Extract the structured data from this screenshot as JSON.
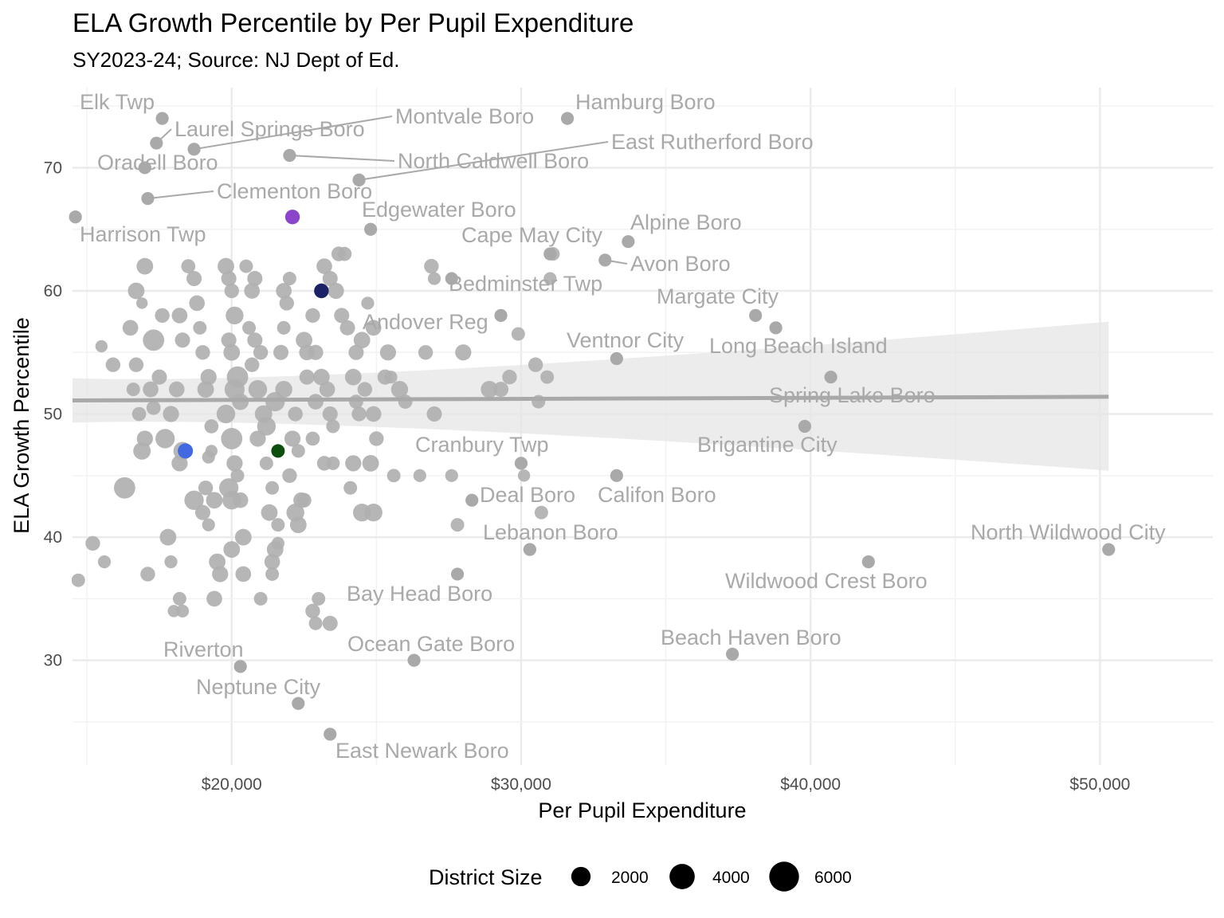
{
  "chart_data": {
    "type": "scatter",
    "title": "ELA Growth Percentile by Per Pupil Expenditure",
    "subtitle": "SY2023-24; Source: NJ Dept of Ed.",
    "xlabel": "Per Pupil Expenditure",
    "ylabel": "ELA Growth Percentile",
    "xlim": [
      14500,
      53900
    ],
    "ylim": [
      21.5,
      76.5
    ],
    "x_ticks": [
      {
        "value": 20000,
        "label": "$20,000"
      },
      {
        "value": 30000,
        "label": "$30,000"
      },
      {
        "value": 40000,
        "label": "$40,000"
      },
      {
        "value": 50000,
        "label": "$50,000"
      }
    ],
    "y_ticks": [
      {
        "value": 30,
        "label": "30"
      },
      {
        "value": 40,
        "label": "40"
      },
      {
        "value": 50,
        "label": "50"
      },
      {
        "value": 60,
        "label": "60"
      },
      {
        "value": 70,
        "label": "70"
      }
    ],
    "grid": true,
    "trend": {
      "type": "linear",
      "x_start": 14500,
      "y_start": 51.1,
      "x_end": 50300,
      "y_end": 51.4,
      "band_start": [
        49.3,
        52.9
      ],
      "band_mid": [
        50.3,
        51.9
      ],
      "band_x_mid": 24000,
      "band_end": [
        45.4,
        57.5
      ],
      "color": "#a9a9a9"
    },
    "legend": {
      "title": "District Size",
      "position": "bottom",
      "entries": [
        {
          "label": "2000",
          "size": 2000
        },
        {
          "label": "4000",
          "size": 4000
        },
        {
          "label": "6000",
          "size": 6000
        }
      ]
    },
    "labeled_points": [
      {
        "name": "Elk Twp",
        "x": 17600,
        "y": 74
      },
      {
        "name": "Laurel Springs Boro",
        "x": 17400,
        "y": 72
      },
      {
        "name": "Montvale Boro",
        "x": 18700,
        "y": 71.5
      },
      {
        "name": "Hamburg Boro",
        "x": 31600,
        "y": 74
      },
      {
        "name": "East Rutherford Boro",
        "x": 24400,
        "y": 69
      },
      {
        "name": "Oradell Boro",
        "x": 17000,
        "y": 70
      },
      {
        "name": "North Caldwell Boro",
        "x": 22000,
        "y": 71
      },
      {
        "name": "Clementon Boro",
        "x": 17100,
        "y": 67.5
      },
      {
        "name": "Edgewater Boro",
        "x": 24800,
        "y": 65
      },
      {
        "name": "Harrison Twp",
        "x": 14600,
        "y": 66
      },
      {
        "name": "Alpine Boro",
        "x": 33700,
        "y": 64
      },
      {
        "name": "Cape May City",
        "x": 31000,
        "y": 63
      },
      {
        "name": "Avon Boro",
        "x": 32900,
        "y": 62.5
      },
      {
        "name": "Bedminster Twp",
        "x": 27600,
        "y": 61
      },
      {
        "name": "Margate City",
        "x": 38100,
        "y": 58
      },
      {
        "name": "Andover Reg",
        "x": 29300,
        "y": 58
      },
      {
        "name": "Ventnor City",
        "x": 33300,
        "y": 54.5
      },
      {
        "name": "Long Beach Island",
        "x": 38800,
        "y": 57
      },
      {
        "name": "Spring Lake Boro",
        "x": 40700,
        "y": 53
      },
      {
        "name": "Brigantine City",
        "x": 39800,
        "y": 49
      },
      {
        "name": "Cranbury Twp",
        "x": 30000,
        "y": 46
      },
      {
        "name": "Deal Boro",
        "x": 28300,
        "y": 43
      },
      {
        "name": "Califon Boro",
        "x": 33300,
        "y": 45
      },
      {
        "name": "Lebanon Boro",
        "x": 30300,
        "y": 39
      },
      {
        "name": "North Wildwood City",
        "x": 50300,
        "y": 39
      },
      {
        "name": "Wildwood Crest Boro",
        "x": 42000,
        "y": 38
      },
      {
        "name": "Bay Head Boro",
        "x": 27800,
        "y": 37
      },
      {
        "name": "Ocean Gate Boro",
        "x": 26300,
        "y": 30
      },
      {
        "name": "Beach Haven Boro",
        "x": 37300,
        "y": 30.5
      },
      {
        "name": "Riverton",
        "x": 20300,
        "y": 29.5
      },
      {
        "name": "Neptune City",
        "x": 22300,
        "y": 26.5
      },
      {
        "name": "East Newark Boro",
        "x": 23400,
        "y": 24
      }
    ],
    "highlight_points": [
      {
        "x": 22100,
        "y": 66,
        "size": 900,
        "color": "#8a45c8"
      },
      {
        "x": 23100,
        "y": 60,
        "size": 900,
        "color": "#1b2266"
      },
      {
        "x": 18400,
        "y": 47,
        "size": 1000,
        "color": "#4169e1"
      },
      {
        "x": 21600,
        "y": 47,
        "size": 700,
        "color": "#0d4d0d"
      }
    ],
    "other_points": [
      [
        14700,
        36.5,
        700
      ],
      [
        15200,
        39.5,
        900
      ],
      [
        15600,
        38,
        600
      ],
      [
        15900,
        54,
        900
      ],
      [
        15500,
        55.5,
        500
      ],
      [
        16300,
        44,
        2600
      ],
      [
        16500,
        57,
        1100
      ],
      [
        16700,
        54,
        900
      ],
      [
        16800,
        50,
        800
      ],
      [
        16700,
        60,
        1300
      ],
      [
        16900,
        59,
        400
      ],
      [
        17000,
        62,
        1300
      ],
      [
        16600,
        52,
        700
      ],
      [
        17000,
        48,
        1200
      ],
      [
        16900,
        47,
        1500
      ],
      [
        17100,
        37,
        900
      ],
      [
        17200,
        52,
        1100
      ],
      [
        17300,
        50.5,
        800
      ],
      [
        17500,
        53,
        1000
      ],
      [
        17300,
        56,
        2600
      ],
      [
        17600,
        58,
        900
      ],
      [
        17700,
        48,
        2000
      ],
      [
        17900,
        50,
        1200
      ],
      [
        17800,
        40,
        1300
      ],
      [
        17900,
        38,
        600
      ],
      [
        18100,
        52,
        1100
      ],
      [
        18200,
        58,
        1100
      ],
      [
        18300,
        56,
        1000
      ],
      [
        18500,
        62,
        800
      ],
      [
        18700,
        61,
        1000
      ],
      [
        18300,
        47,
        1700
      ],
      [
        18200,
        46,
        1200
      ],
      [
        18700,
        43,
        2000
      ],
      [
        18200,
        35,
        700
      ],
      [
        18300,
        34,
        600
      ],
      [
        18000,
        34,
        500
      ],
      [
        18800,
        59,
        1100
      ],
      [
        18900,
        57,
        700
      ],
      [
        19000,
        55,
        900
      ],
      [
        19200,
        53,
        1200
      ],
      [
        19100,
        52,
        1300
      ],
      [
        19300,
        49,
        800
      ],
      [
        19200,
        46.5,
        600
      ],
      [
        19300,
        47,
        500
      ],
      [
        19100,
        44,
        900
      ],
      [
        19000,
        42,
        1000
      ],
      [
        19400,
        43,
        1300
      ],
      [
        19200,
        41,
        600
      ],
      [
        19600,
        37,
        1200
      ],
      [
        19400,
        35,
        1100
      ],
      [
        19500,
        38,
        1300
      ],
      [
        19800,
        62,
        1300
      ],
      [
        19900,
        61,
        1000
      ],
      [
        20000,
        60,
        900
      ],
      [
        20100,
        58,
        1600
      ],
      [
        19900,
        56,
        1000
      ],
      [
        20000,
        55,
        1300
      ],
      [
        20200,
        53,
        2600
      ],
      [
        20100,
        52,
        2200
      ],
      [
        20300,
        51,
        1300
      ],
      [
        19800,
        50,
        1800
      ],
      [
        20000,
        48,
        2600
      ],
      [
        20100,
        46,
        1200
      ],
      [
        20200,
        45,
        700
      ],
      [
        19900,
        44,
        2000
      ],
      [
        20000,
        43,
        1800
      ],
      [
        20300,
        43,
        1100
      ],
      [
        20000,
        39,
        1300
      ],
      [
        20400,
        40,
        1300
      ],
      [
        20400,
        37,
        1100
      ],
      [
        20500,
        62,
        700
      ],
      [
        20800,
        61,
        1000
      ],
      [
        20700,
        60,
        1100
      ],
      [
        20600,
        57,
        700
      ],
      [
        20800,
        56,
        1000
      ],
      [
        21000,
        55,
        900
      ],
      [
        20700,
        54,
        900
      ],
      [
        20900,
        52,
        1800
      ],
      [
        21100,
        50,
        1500
      ],
      [
        21200,
        49,
        1800
      ],
      [
        20900,
        48,
        1200
      ],
      [
        21200,
        46,
        700
      ],
      [
        21400,
        44,
        700
      ],
      [
        21300,
        42,
        1300
      ],
      [
        21600,
        41,
        700
      ],
      [
        21400,
        38,
        1100
      ],
      [
        21400,
        37,
        700
      ],
      [
        21500,
        39,
        1300
      ],
      [
        21600,
        39.5,
        600
      ],
      [
        21000,
        35,
        700
      ],
      [
        21800,
        60,
        1100
      ],
      [
        21900,
        59,
        900
      ],
      [
        22000,
        61,
        700
      ],
      [
        21800,
        57,
        700
      ],
      [
        21700,
        55,
        1000
      ],
      [
        21500,
        51,
        2000
      ],
      [
        21800,
        52,
        1400
      ],
      [
        22100,
        48,
        1200
      ],
      [
        22200,
        50,
        900
      ],
      [
        22300,
        47,
        700
      ],
      [
        22000,
        45,
        900
      ],
      [
        22200,
        42,
        1600
      ],
      [
        22400,
        43,
        1100
      ],
      [
        22300,
        41,
        1300
      ],
      [
        22500,
        43,
        900
      ],
      [
        22600,
        55,
        1100
      ],
      [
        22500,
        56,
        1300
      ],
      [
        22800,
        58,
        900
      ],
      [
        22900,
        55,
        1000
      ],
      [
        23100,
        53,
        1300
      ],
      [
        22600,
        53,
        1000
      ],
      [
        22900,
        51,
        1100
      ],
      [
        23300,
        52,
        1100
      ],
      [
        23500,
        49,
        700
      ],
      [
        23400,
        50,
        1000
      ],
      [
        22800,
        48,
        800
      ],
      [
        23200,
        46,
        900
      ],
      [
        23500,
        46,
        700
      ],
      [
        22800,
        34,
        900
      ],
      [
        22900,
        33,
        700
      ],
      [
        23000,
        35,
        700
      ],
      [
        23400,
        33,
        1000
      ],
      [
        23200,
        62,
        1100
      ],
      [
        23400,
        61,
        1000
      ],
      [
        23700,
        63,
        900
      ],
      [
        23900,
        63,
        800
      ],
      [
        23600,
        60,
        1200
      ],
      [
        23800,
        58,
        1000
      ],
      [
        24000,
        57,
        1000
      ],
      [
        24200,
        53,
        1300
      ],
      [
        24300,
        55,
        1000
      ],
      [
        24500,
        56,
        1300
      ],
      [
        24300,
        51,
        800
      ],
      [
        24600,
        52,
        900
      ],
      [
        24400,
        50,
        900
      ],
      [
        24200,
        46,
        1200
      ],
      [
        24800,
        46,
        1300
      ],
      [
        24100,
        44,
        700
      ],
      [
        24500,
        42,
        1600
      ],
      [
        24900,
        42,
        1600
      ],
      [
        24700,
        59,
        600
      ],
      [
        24900,
        57,
        1100
      ],
      [
        24900,
        50,
        1100
      ],
      [
        25000,
        48,
        900
      ],
      [
        25300,
        53,
        1000
      ],
      [
        25400,
        55,
        1200
      ],
      [
        25500,
        53,
        600
      ],
      [
        25600,
        45,
        700
      ],
      [
        25800,
        52,
        1400
      ],
      [
        26000,
        51,
        800
      ],
      [
        26500,
        45,
        600
      ],
      [
        27000,
        50,
        1000
      ],
      [
        26700,
        55,
        900
      ],
      [
        26900,
        62,
        900
      ],
      [
        27000,
        61,
        600
      ],
      [
        27600,
        45,
        600
      ],
      [
        27800,
        41,
        700
      ],
      [
        28000,
        55,
        1200
      ],
      [
        28900,
        52,
        1400
      ],
      [
        29300,
        52,
        1000
      ],
      [
        29600,
        53,
        900
      ],
      [
        29900,
        56.5,
        700
      ],
      [
        30100,
        45,
        500
      ],
      [
        30500,
        54,
        900
      ],
      [
        30600,
        51,
        700
      ],
      [
        30900,
        53,
        700
      ],
      [
        31100,
        63,
        700
      ],
      [
        30700,
        42,
        700
      ],
      [
        30300,
        39,
        600
      ],
      [
        31000,
        61,
        600
      ]
    ]
  }
}
